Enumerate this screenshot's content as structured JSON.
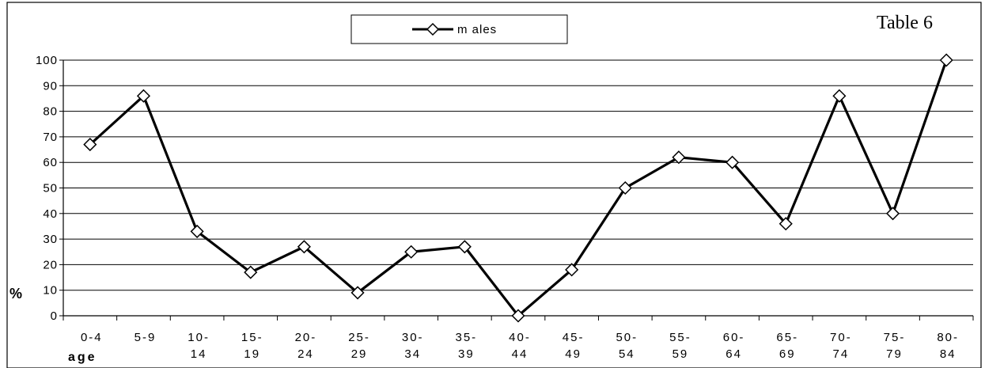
{
  "table_label": "Table 6",
  "chart_data": {
    "type": "line",
    "categories": [
      [
        "0-4"
      ],
      [
        "5-9"
      ],
      [
        "10-",
        "14"
      ],
      [
        "15-",
        "19"
      ],
      [
        "20-",
        "24"
      ],
      [
        "25-",
        "29"
      ],
      [
        "30-",
        "34"
      ],
      [
        "35-",
        "39"
      ],
      [
        "40-",
        "44"
      ],
      [
        "45-",
        "49"
      ],
      [
        "50-",
        "54"
      ],
      [
        "55-",
        "59"
      ],
      [
        "60-",
        "64"
      ],
      [
        "65-",
        "69"
      ],
      [
        "70-",
        "74"
      ],
      [
        "75-",
        "79"
      ],
      [
        "80-",
        "84"
      ]
    ],
    "series": [
      {
        "name": "m ales",
        "values": [
          67,
          86,
          33,
          17,
          27,
          9,
          25,
          27,
          0,
          18,
          50,
          62,
          60,
          36,
          86,
          40,
          100
        ]
      }
    ],
    "xlabel": "age",
    "ylabel": "%",
    "ylim": [
      0,
      100
    ],
    "yticks": [
      0,
      10,
      20,
      30,
      40,
      50,
      60,
      70,
      80,
      90,
      100
    ],
    "grid": true,
    "legend_position": "top-center",
    "line_color": "#000000",
    "marker": "diamond-open"
  }
}
